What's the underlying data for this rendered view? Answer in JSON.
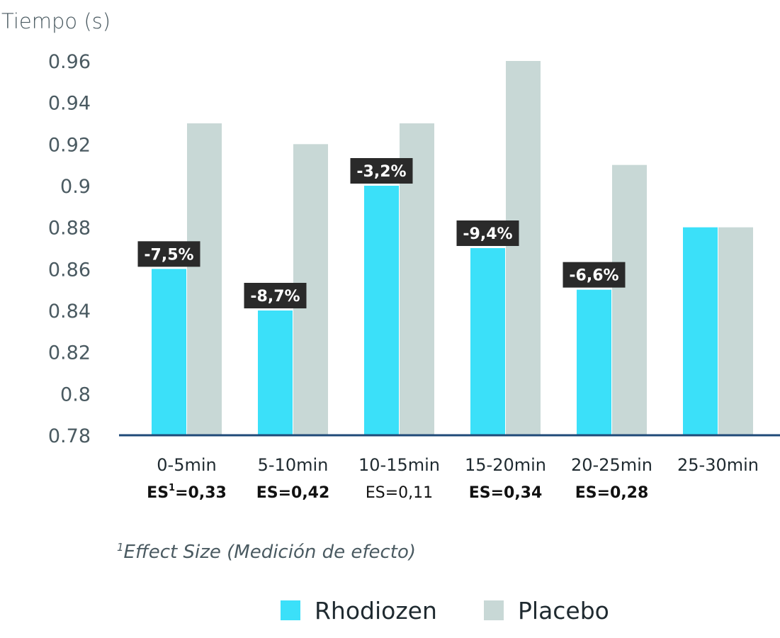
{
  "chart_data": {
    "type": "bar",
    "ylabel": "Tiempo (s)",
    "ylim": [
      0.78,
      0.96
    ],
    "yticks": [
      "0.96",
      "0.94",
      "0.92",
      "0.9",
      "0.88",
      "0.86",
      "0.84",
      "0.82",
      "0.8",
      "0.78"
    ],
    "categories": [
      "0-5min",
      "5-10min",
      "10-15min",
      "15-20min",
      "20-25min",
      "25-30min"
    ],
    "series": [
      {
        "name": "Rhodiozen",
        "color": "#3be0f9",
        "values": [
          0.86,
          0.84,
          0.9,
          0.87,
          0.85,
          0.88
        ]
      },
      {
        "name": "Placebo",
        "color": "#c8d8d6",
        "values": [
          0.93,
          0.92,
          0.93,
          0.96,
          0.91,
          0.88
        ]
      }
    ],
    "change_labels": [
      "-7,5%",
      "-8,7%",
      "-3,2%",
      "-9,4%",
      "-6,6%",
      ""
    ],
    "effect_sizes": [
      {
        "prefix": "ES",
        "sup": "1",
        "value": "=0,33",
        "bold": true
      },
      {
        "prefix": "ES",
        "sup": "",
        "value": "=0,42",
        "bold": true
      },
      {
        "prefix": "ES",
        "sup": "",
        "value": "=0,11",
        "bold": false
      },
      {
        "prefix": "ES",
        "sup": "",
        "value": "=0,34",
        "bold": true
      },
      {
        "prefix": "ES",
        "sup": "",
        "value": "=0,28",
        "bold": true
      }
    ],
    "footnote": {
      "sup": "1",
      "text": "Effect Size (Medición de efecto)"
    },
    "legend": [
      {
        "label": "Rhodiozen",
        "color": "#3be0f9"
      },
      {
        "label": "Placebo",
        "color": "#c8d8d6"
      }
    ],
    "legend_position": "bottom-center",
    "grid": false,
    "axis_color": "#1f4a78",
    "label_box_color": "#2a2a2a"
  }
}
